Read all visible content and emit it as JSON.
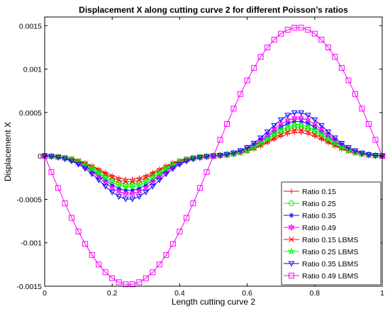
{
  "chart_data": {
    "type": "line",
    "title": "Displacement X along cutting curve 2 for different Poisson’s ratios",
    "xlabel": "Length cutting curve 2",
    "ylabel": "Displacement X",
    "xlim": [
      0,
      1
    ],
    "ylim": [
      -0.0015,
      0.0016
    ],
    "x_ticks": [
      0,
      0.2,
      0.4,
      0.6,
      0.8,
      1
    ],
    "x_tick_labels": [
      "0",
      "0.2",
      "0.4",
      "0.6",
      "0.8",
      "1"
    ],
    "y_ticks": [
      -0.0015,
      -0.001,
      -0.0005,
      0,
      0.0005,
      0.001,
      0.0015
    ],
    "y_tick_labels": [
      "-0.0015",
      "-0.001",
      "-0.0005",
      "0",
      "0.0005",
      "0.001",
      "0.0015"
    ],
    "grid": false,
    "legend_position": "bottom-right",
    "x": [
      0,
      0.02,
      0.04,
      0.06,
      0.08,
      0.1,
      0.12,
      0.14,
      0.16,
      0.18,
      0.2,
      0.22,
      0.24,
      0.26,
      0.28,
      0.3,
      0.32,
      0.34,
      0.36,
      0.38,
      0.4,
      0.42,
      0.44,
      0.46,
      0.48,
      0.5,
      0.52,
      0.54,
      0.56,
      0.58,
      0.6,
      0.62,
      0.64,
      0.66,
      0.68,
      0.7,
      0.72,
      0.74,
      0.76,
      0.78,
      0.8,
      0.82,
      0.84,
      0.86,
      0.88,
      0.9,
      0.92,
      0.94,
      0.96,
      0.98,
      1
    ],
    "series": [
      {
        "name": "Ratio 0.15",
        "color": "#ff0000",
        "marker": "plus",
        "draw_line": true,
        "amplitude": 0.00027,
        "shape": "smooth"
      },
      {
        "name": "Ratio 0.25",
        "color": "#00ff00",
        "marker": "circle",
        "draw_line": true,
        "amplitude": 0.00033,
        "shape": "smooth"
      },
      {
        "name": "Ratio 0.35",
        "color": "#0000ff",
        "marker": "asterisk",
        "draw_line": true,
        "amplitude": 0.0004,
        "shape": "smooth"
      },
      {
        "name": "Ratio 0.49",
        "color": "#ff00ff",
        "marker": "hexagram",
        "draw_line": true,
        "amplitude": 0.00044,
        "shape": "smooth"
      },
      {
        "name": "Ratio 0.15 LBMS",
        "color": "#ff0000",
        "marker": "x",
        "draw_line": true,
        "amplitude": 0.0003,
        "shape": "smooth"
      },
      {
        "name": "Ratio 0.25 LBMS",
        "color": "#00ff00",
        "marker": "star",
        "draw_line": true,
        "amplitude": 0.00036,
        "shape": "smooth"
      },
      {
        "name": "Ratio 0.35 LBMS",
        "color": "#0000ff",
        "marker": "triangle-down",
        "draw_line": true,
        "amplitude": 0.0005,
        "shape": "smooth"
      },
      {
        "name": "Ratio 0.49 LBMS",
        "color": "#ff00ff",
        "marker": "square",
        "draw_line": true,
        "amplitude": 0.00148,
        "shape": "sine"
      }
    ]
  }
}
